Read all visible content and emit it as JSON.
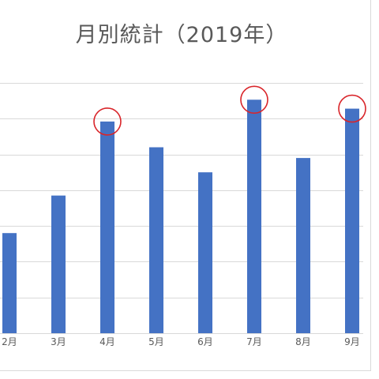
{
  "chart_data": {
    "type": "bar",
    "title": "月別統計（2019年）",
    "xlabel": "",
    "ylabel": "",
    "categories": [
      "2月",
      "3月",
      "4月",
      "5月",
      "6月",
      "7月",
      "8月",
      "9月"
    ],
    "values": [
      28,
      38.5,
      59.2,
      52,
      45,
      65.3,
      49,
      62.8
    ],
    "ylim": [
      0,
      70
    ],
    "grid": true,
    "gridlines": [
      0,
      10,
      20,
      30,
      40,
      50,
      60,
      70
    ],
    "highlighted": [
      "4月",
      "7月",
      "9月"
    ],
    "colors": {
      "bar": "#4472C4",
      "highlight": "#D9252A",
      "grid": "#D9D9D9",
      "text": "#595959"
    }
  }
}
